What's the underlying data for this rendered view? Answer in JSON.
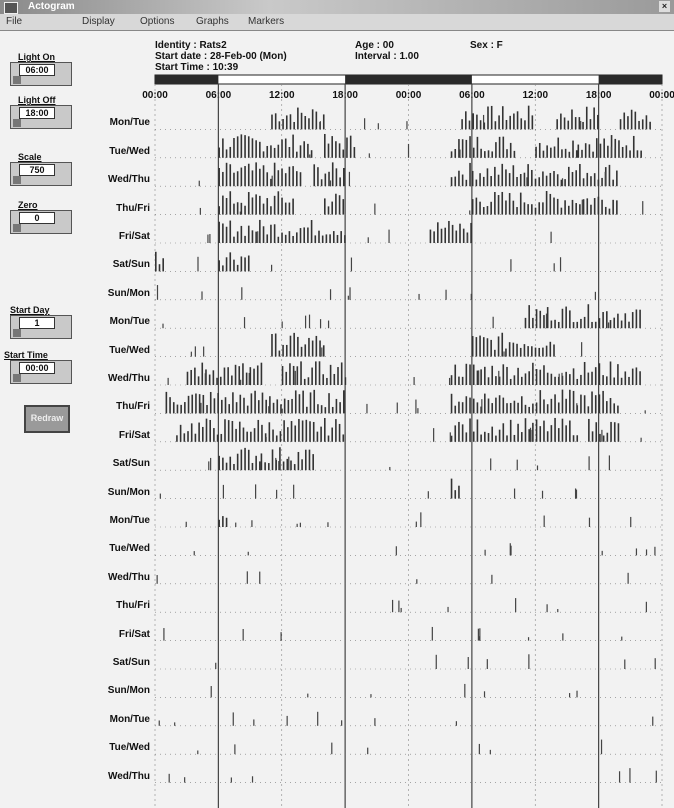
{
  "window": {
    "title": "Actogram"
  },
  "menu": {
    "items": [
      "File",
      "Display",
      "Options",
      "Graphs",
      "Markers"
    ]
  },
  "controls": {
    "light_on": {
      "label": "Light On",
      "value": "06:00"
    },
    "light_off": {
      "label": "Light Off",
      "value": "18:00"
    },
    "scale": {
      "label": "Scale",
      "value": "750"
    },
    "zero": {
      "label": "Zero",
      "value": "0"
    },
    "start_day": {
      "label": "Start Day",
      "value": "1"
    },
    "start_time": {
      "label": "Start Time",
      "value": "00:00"
    },
    "redraw_label": "Redraw"
  },
  "info": {
    "identity": "Identity : Rats2",
    "start_date": "Start date : 28-Feb-00 (Mon)",
    "start_time": "Start Time : 10:39",
    "age": "Age : 00",
    "sex": "Sex : F",
    "interval": "Interval  : 1.00"
  },
  "chart_data": {
    "type": "bar",
    "x_ticks": [
      "00:00",
      "06:00",
      "12:00",
      "18:00",
      "00:00",
      "06:00",
      "12:00",
      "18:00",
      "00:00"
    ],
    "x_range_hours": [
      0,
      48
    ],
    "light_hours": [
      6,
      18
    ],
    "rows": [
      "Mon/Tue",
      "Tue/Wed",
      "Wed/Thu",
      "Thu/Fri",
      "Fri/Sat",
      "Sat/Sun",
      "Sun/Mon",
      "Mon/Tue",
      "Tue/Wed",
      "Wed/Thu",
      "Thu/Fri",
      "Fri/Sat",
      "Sat/Sun",
      "Sun/Mon",
      "Mon/Tue",
      "Tue/Wed",
      "Wed/Thu",
      "Thu/Fri",
      "Fri/Sat",
      "Sat/Sun",
      "Sun/Mon",
      "Mon/Tue",
      "Tue/Wed",
      "Wed/Thu"
    ],
    "activity_blocks": [
      [
        [
          11,
          16
        ],
        [
          29,
          36
        ],
        [
          38,
          42
        ],
        [
          44,
          47
        ]
      ],
      [
        [
          6,
          15
        ],
        [
          16,
          19
        ],
        [
          28,
          34
        ],
        [
          36,
          40
        ],
        [
          40,
          46
        ]
      ],
      [
        [
          6,
          14
        ],
        [
          15,
          18
        ],
        [
          28,
          30
        ],
        [
          30,
          44
        ]
      ],
      [
        [
          6,
          13
        ],
        [
          16,
          18
        ],
        [
          30,
          44
        ]
      ],
      [
        [
          6,
          18
        ],
        [
          26,
          30
        ]
      ],
      [
        [
          0,
          1
        ],
        [
          6,
          9
        ]
      ],
      [],
      [
        [
          35,
          46
        ]
      ],
      [
        [
          11,
          16
        ],
        [
          30,
          38
        ]
      ],
      [
        [
          3,
          10
        ],
        [
          12,
          18
        ],
        [
          28,
          46
        ]
      ],
      [
        [
          1,
          18
        ],
        [
          28,
          44
        ]
      ],
      [
        [
          2,
          18
        ],
        [
          28,
          40
        ],
        [
          41,
          44
        ]
      ],
      [
        [
          6,
          10
        ],
        [
          10,
          15
        ]
      ],
      [
        [
          28,
          29
        ]
      ],
      [
        [
          6,
          7
        ]
      ],
      [],
      [],
      [],
      [],
      [],
      [],
      [],
      [],
      []
    ]
  }
}
